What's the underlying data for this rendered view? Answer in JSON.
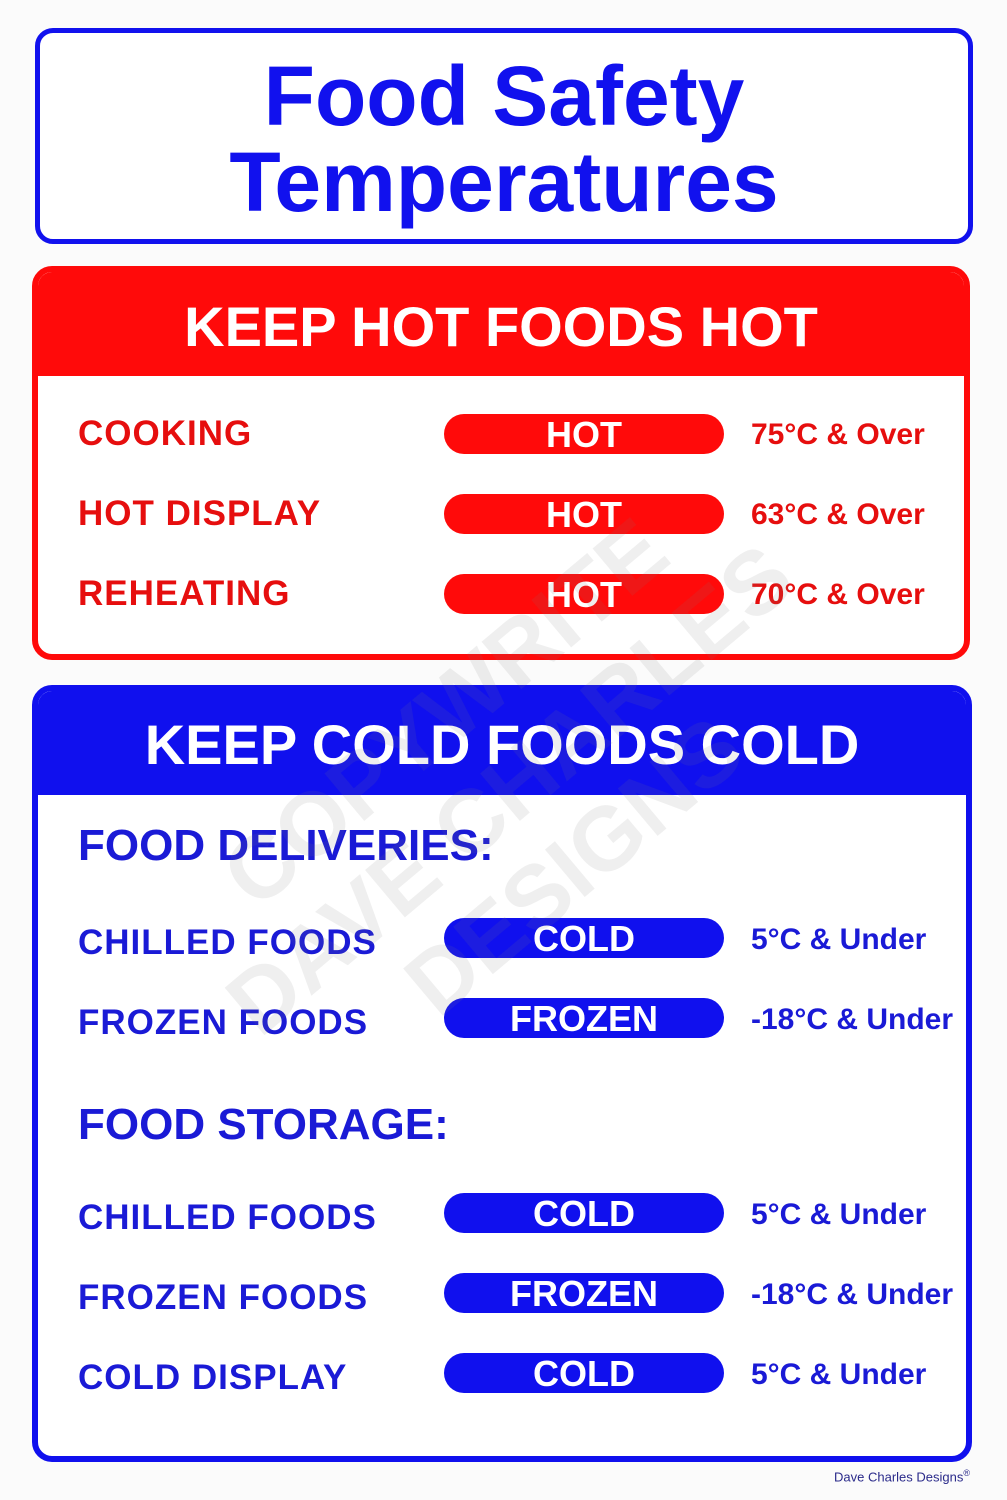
{
  "title": {
    "line1": "Food Safety",
    "line2": "Temperatures"
  },
  "hot": {
    "heading": "KEEP HOT FOODS HOT",
    "rows": [
      {
        "label": "COOKING",
        "badge": "HOT",
        "value": "75°C & Over"
      },
      {
        "label": "HOT DISPLAY",
        "badge": "HOT",
        "value": "63°C & Over"
      },
      {
        "label": "REHEATING",
        "badge": "HOT",
        "value": "70°C & Over"
      }
    ]
  },
  "cold": {
    "heading": "KEEP COLD FOODS COLD",
    "deliveries": {
      "heading": "FOOD DELIVERIES:",
      "rows": [
        {
          "label": "CHILLED FOODS",
          "badge": "COLD",
          "value": "5°C & Under"
        },
        {
          "label": "FROZEN FOODS",
          "badge": "FROZEN",
          "value": "-18°C & Under"
        }
      ]
    },
    "storage": {
      "heading": "FOOD STORAGE:",
      "rows": [
        {
          "label": "CHILLED FOODS",
          "badge": "COLD",
          "value": "5°C & Under"
        },
        {
          "label": "FROZEN FOODS",
          "badge": "FROZEN",
          "value": "-18°C & Under"
        },
        {
          "label": "COLD DISPLAY",
          "badge": "COLD",
          "value": "5°C & Under"
        }
      ]
    }
  },
  "watermark": {
    "line1": "COPYWRITE",
    "line2": "DAVE CHARLES",
    "line3": "DESIGNS"
  },
  "credit": {
    "text": "Dave Charles Designs",
    "mark": "®"
  },
  "colors": {
    "hot": "#ff0a0a",
    "cold": "#1010ee",
    "background": "#fbfbfb"
  }
}
